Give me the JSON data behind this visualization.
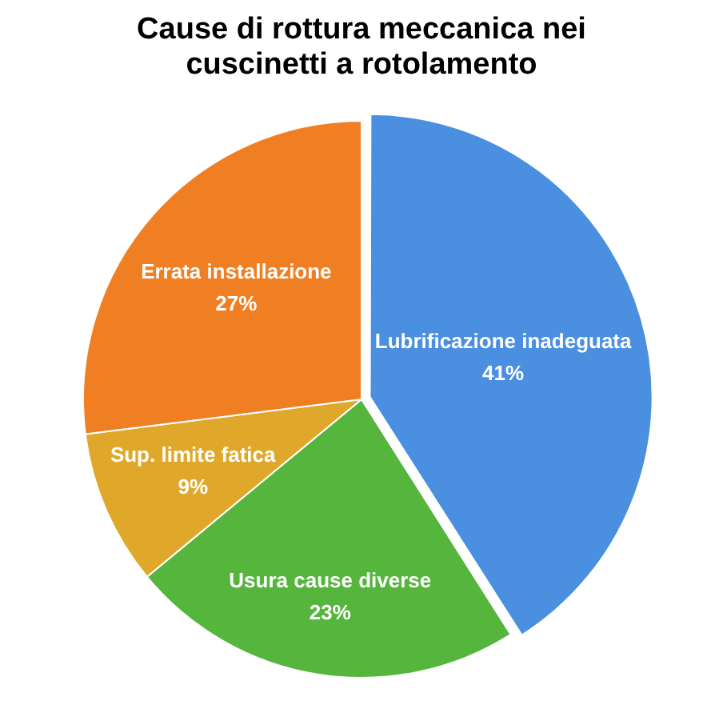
{
  "chart_data": {
    "type": "pie",
    "title": "Cause di rottura meccanica nei cuscinetti a rotolamento",
    "categories": [
      "Lubrificazione inadeguata",
      "Usura cause diverse",
      "Sup. limite fatica",
      "Errata installazione"
    ],
    "values": [
      41,
      23,
      9,
      27
    ],
    "value_labels": [
      "41%",
      "23%",
      "9%",
      "27%"
    ],
    "colors": [
      "#4a8fe0",
      "#55b53c",
      "#e0a82a",
      "#f07e22"
    ],
    "legend": false
  }
}
